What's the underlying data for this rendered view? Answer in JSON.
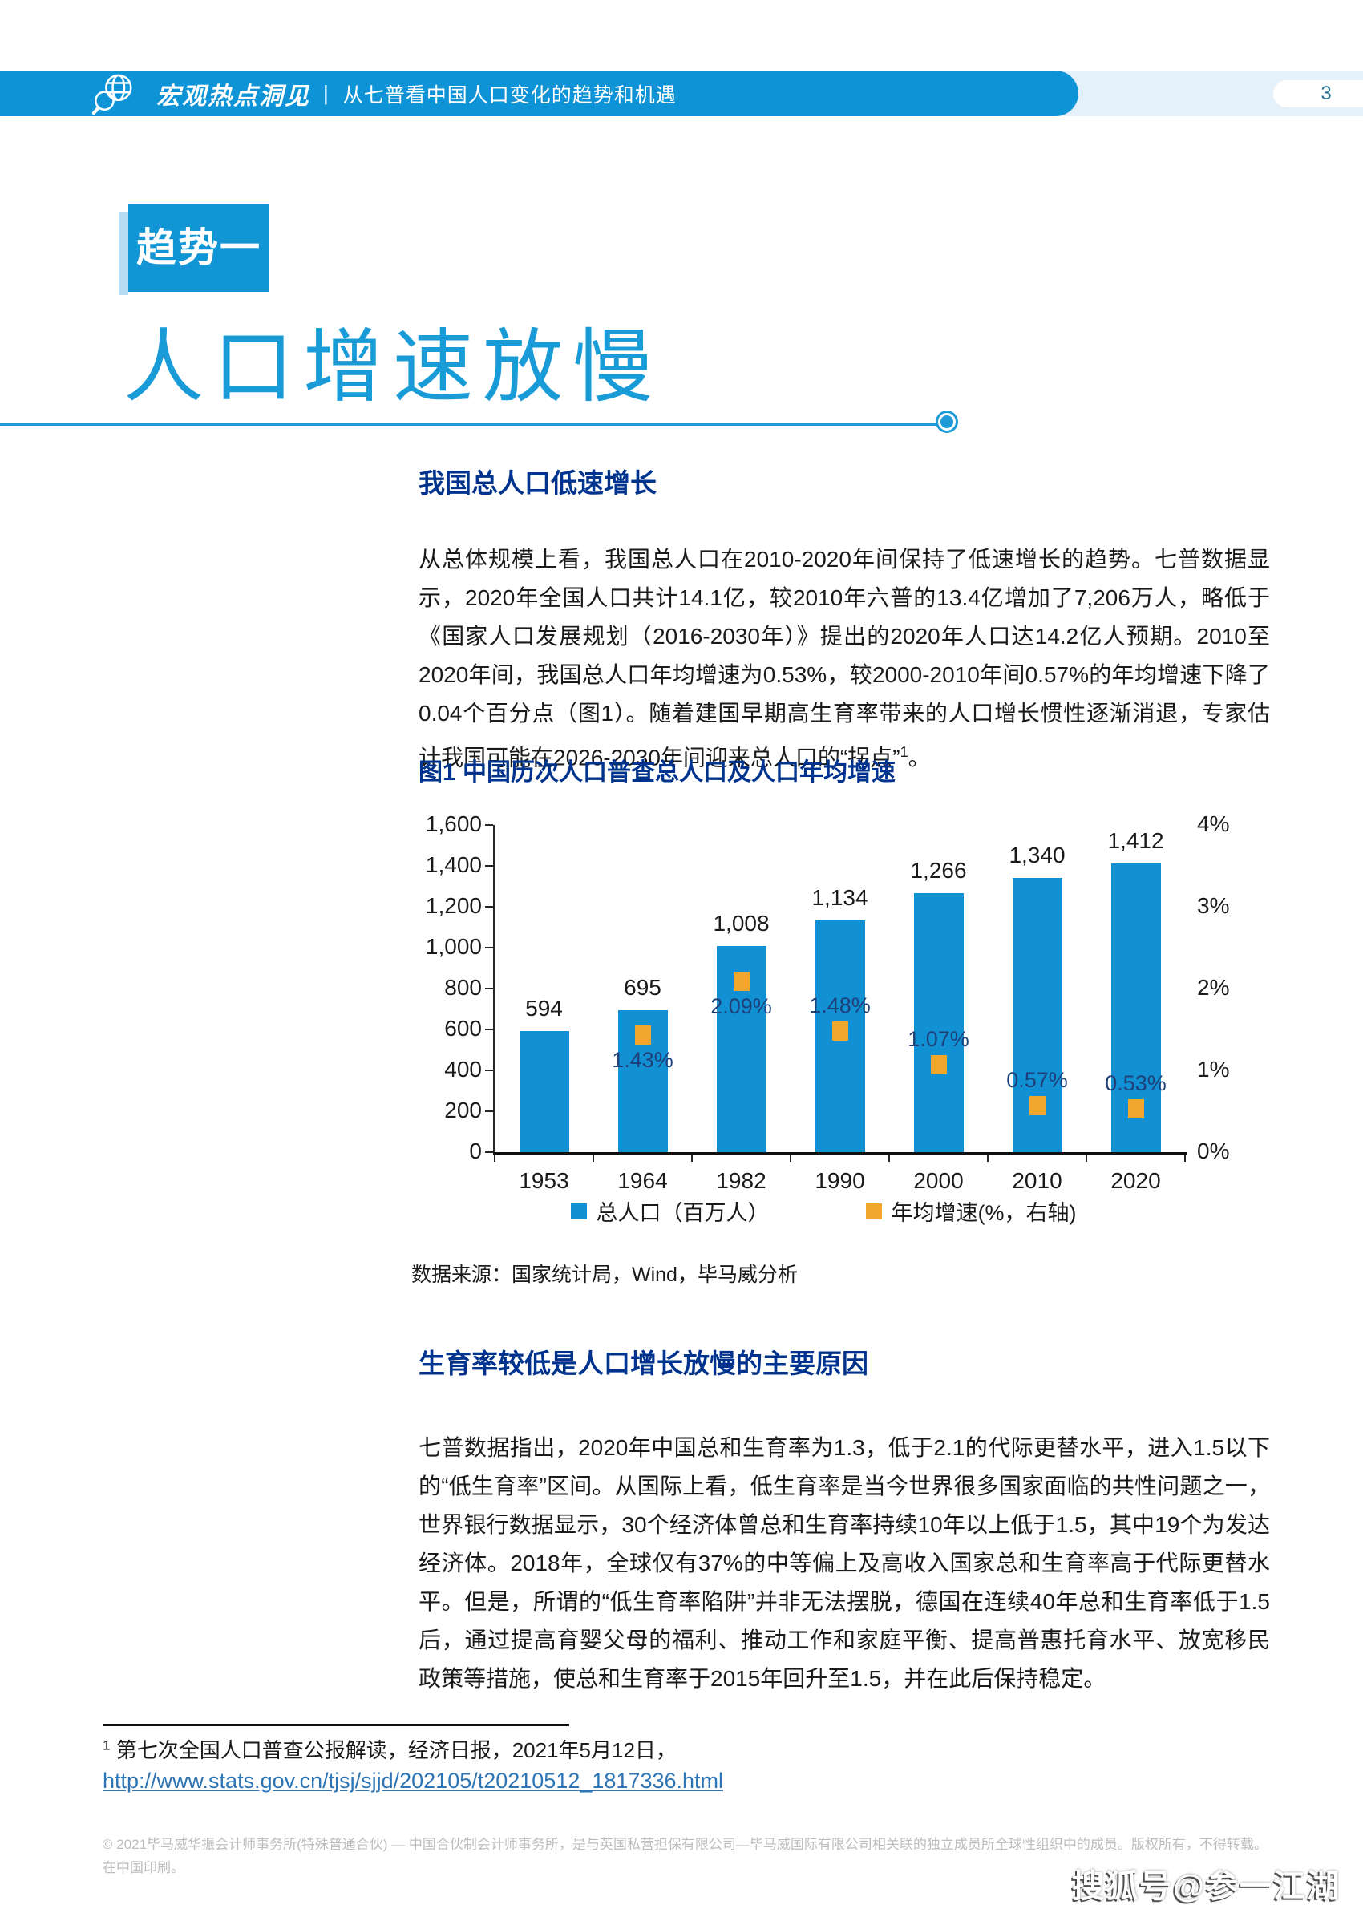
{
  "colors": {
    "band_blue": "#0E94D6",
    "band_light": "#E4F1FA",
    "hero_blue": "#199BD7",
    "badge_blue": "#1295D5",
    "badge_strip": "#B5DCF2",
    "heading_navy": "#00338D",
    "bar_blue": "#1191D4",
    "marker_yellow": "#F0A72B",
    "link_blue": "#2E75B6",
    "footer_gray": "#BDBDBD"
  },
  "header": {
    "brand": "宏观热点洞见",
    "divider": "|",
    "title": "从七普看中国人口变化的趋势和机遇",
    "page_number": "3"
  },
  "hero": {
    "badge": "趋势一",
    "title": "人口增速放慢"
  },
  "section1": {
    "heading": "我国总人口低速增长",
    "paragraph": "从总体规模上看，我国总人口在2010-2020年间保持了低速增长的趋势。七普数据显示，2020年全国人口共计14.1亿，较2010年六普的13.4亿增加了7,206万人，略低于《国家人口发展规划（2016-2030年）》提出的2020年人口达14.2亿人预期。2010至2020年间，我国总人口年均增速为0.53%，较2000-2010年间0.57%的年均增速下降了0.04个百分点（图1）。随着建国早期高生育率带来的人口增长惯性逐渐消退，专家估计我国可能在2026-2030年间迎来总人口的“拐点”",
    "footnote_marker": "1",
    "paragraph_close": "。"
  },
  "chart_data": {
    "type": "bar",
    "title": "图1  中国历次人口普查总人口及人口年均增速",
    "categories": [
      "1953",
      "1964",
      "1982",
      "1990",
      "2000",
      "2010",
      "2020"
    ],
    "series": [
      {
        "name": "总人口（百万人）",
        "render": "bar",
        "axis": "left",
        "values": [
          594,
          695,
          1008,
          1134,
          1266,
          1340,
          1412
        ],
        "labels": [
          "594",
          "695",
          "1,008",
          "1,134",
          "1,266",
          "1,340",
          "1,412"
        ],
        "color": "#1191D4"
      },
      {
        "name": "年均增速(%，右轴)",
        "render": "point",
        "axis": "right",
        "values": [
          null,
          1.43,
          2.09,
          1.48,
          1.07,
          0.57,
          0.53
        ],
        "labels": [
          "",
          "1.43%",
          "2.09%",
          "1.48%",
          "1.07%",
          "0.57%",
          "0.53%"
        ],
        "label_position": [
          "",
          "below",
          "below",
          "above",
          "above",
          "above",
          "above"
        ],
        "color": "#F0A72B"
      }
    ],
    "left_axis": {
      "min": 0,
      "max": 1600,
      "step": 200,
      "tick_labels": [
        "0",
        "200",
        "400",
        "600",
        "800",
        "1,000",
        "1,200",
        "1,400",
        "1,600"
      ]
    },
    "right_axis": {
      "min": 0,
      "max": 4,
      "step": 1,
      "tick_labels": [
        "0%",
        "1%",
        "2%",
        "3%",
        "4%"
      ]
    },
    "grid": false,
    "legend_position": "bottom",
    "source": "数据来源：国家统计局，Wind，毕马威分析"
  },
  "section2": {
    "heading": "生育率较低是人口增长放慢的主要原因",
    "paragraph": "七普数据指出，2020年中国总和生育率为1.3，低于2.1的代际更替水平，进入1.5以下的“低生育率”区间。从国际上看，低生育率是当今世界很多国家面临的共性问题之一，世界银行数据显示，30个经济体曾总和生育率持续10年以上低于1.5，其中19个为发达经济体。2018年，全球仅有37%的中等偏上及高收入国家总和生育率高于代际更替水平。但是，所谓的“低生育率陷阱”并非无法摆脱，德国在连续40年总和生育率低于1.5后，通过提高育婴父母的福利、推动工作和家庭平衡、提高普惠托育水平、放宽移民政策等措施，使总和生育率于2015年回升至1.5，并在此后保持稳定。"
  },
  "footnote": {
    "marker": "1",
    "text": " 第七次全国人口普查公报解读，经济日报，2021年5月12日，",
    "link": "http://www.stats.gov.cn/tjsj/sjjd/202105/t20210512_1817336.html"
  },
  "footer": {
    "line1": "© 2021毕马威华振会计师事务所(特殊普通合伙) — 中国合伙制会计师事务所，是与英国私营担保有限公司—毕马威国际有限公司相关联的独立成员所全球性组织中的成员。版权所有，不得转载。",
    "line2": "在中国印刷。"
  },
  "watermark": {
    "text": "搜狐号@参一江湖"
  }
}
